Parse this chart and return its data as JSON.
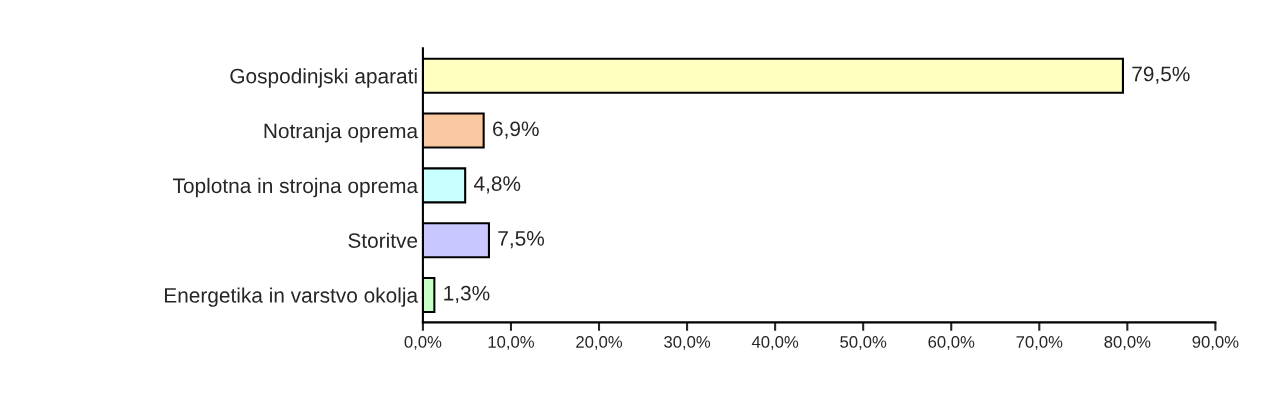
{
  "chart_data": {
    "type": "bar",
    "orientation": "horizontal",
    "categories": [
      "Gospodinjski aparati",
      "Notranja oprema",
      "Toplotna in strojna oprema",
      "Storitve",
      "Energetika in varstvo okolja"
    ],
    "values": [
      79.5,
      6.9,
      4.8,
      7.5,
      1.3
    ],
    "colors": [
      "#ffffc0",
      "#f8c8a0",
      "#c8ffff",
      "#c8c8ff",
      "#c8ffc8"
    ],
    "value_labels": [
      "79,5%",
      "6,9%",
      "4,8%",
      "7,5%",
      "1,3%"
    ],
    "xlim": [
      0,
      90
    ],
    "xticks": [
      {
        "value": 0,
        "label": "0,0%"
      },
      {
        "value": 10,
        "label": "10,0%"
      },
      {
        "value": 20,
        "label": "20,0%"
      },
      {
        "value": 30,
        "label": "30,0%"
      },
      {
        "value": 40,
        "label": "40,0%"
      },
      {
        "value": 50,
        "label": "50,0%"
      },
      {
        "value": 60,
        "label": "60,0%"
      },
      {
        "value": 70,
        "label": "70,0%"
      },
      {
        "value": 80,
        "label": "80,0%"
      },
      {
        "value": 90,
        "label": "90,0%"
      }
    ],
    "grid": false,
    "legend": false
  }
}
